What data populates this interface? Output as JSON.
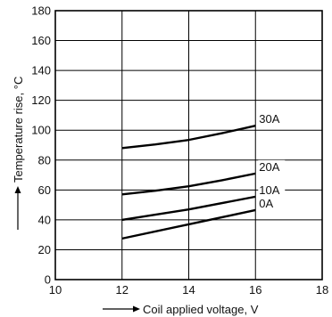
{
  "chart_data": {
    "type": "line",
    "xlabel": "Coil applied voltage, V",
    "ylabel": "Temperature rise, °C",
    "xlim": [
      10,
      18
    ],
    "ylim": [
      0,
      180
    ],
    "xticks": [
      10,
      12,
      14,
      16,
      18
    ],
    "yticks": [
      0,
      20,
      40,
      60,
      80,
      100,
      120,
      140,
      160,
      180
    ],
    "grid": true,
    "series": [
      {
        "name": "30A",
        "points": [
          [
            12,
            88
          ],
          [
            13,
            90.5
          ],
          [
            14,
            93.5
          ],
          [
            15,
            98
          ],
          [
            16,
            103
          ]
        ]
      },
      {
        "name": "20A",
        "points": [
          [
            12,
            57
          ],
          [
            13,
            59.5
          ],
          [
            14,
            62.5
          ],
          [
            15,
            66.5
          ],
          [
            16,
            71
          ]
        ]
      },
      {
        "name": "10A",
        "points": [
          [
            12,
            40
          ],
          [
            14,
            47
          ],
          [
            16,
            55.5
          ]
        ]
      },
      {
        "name": "0A",
        "points": [
          [
            12,
            27.5
          ],
          [
            14,
            37
          ],
          [
            16,
            46.5
          ]
        ]
      }
    ]
  }
}
